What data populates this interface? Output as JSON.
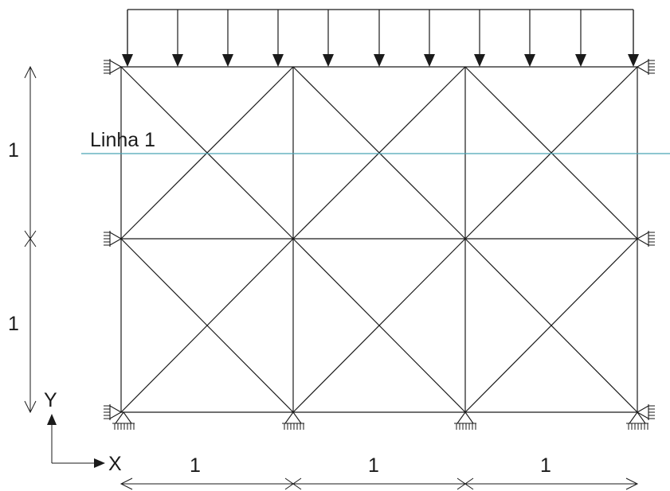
{
  "labels": {
    "section_line": "Linha 1",
    "axis_y": "Y",
    "axis_x": "X",
    "dim_v_top": "1",
    "dim_v_bottom": "1",
    "dim_h_1": "1",
    "dim_h_2": "1",
    "dim_h_3": "1"
  },
  "colors": {
    "stroke": "#1a1a1a",
    "section_line": "#4aa3b5"
  },
  "structure": {
    "columns": 3,
    "rows": 2,
    "cell_width": 1,
    "cell_height": 1,
    "load": "uniform-distributed-top",
    "left_supports": "roller-horizontal",
    "right_supports": "roller-horizontal",
    "bottom_supports": "pinned"
  }
}
